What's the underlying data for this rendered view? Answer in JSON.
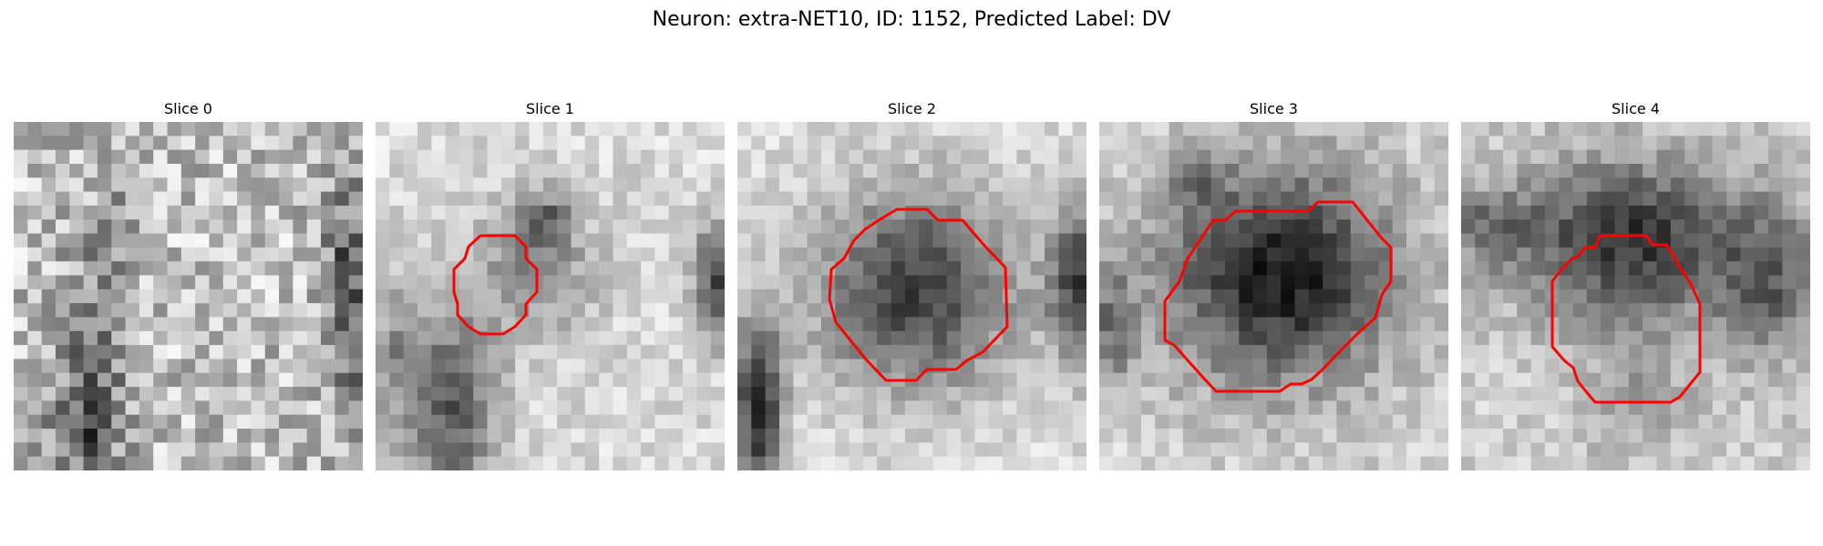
{
  "figure": {
    "title": "Neuron: extra-NET10, ID: 1152, Predicted Label: DV"
  },
  "colors": {
    "contour": "#ff0000",
    "background": "#ffffff",
    "colormap": "grayscale"
  },
  "slices": [
    {
      "title": "Slice 0",
      "has_contour": false
    },
    {
      "title": "Slice 1",
      "has_contour": true
    },
    {
      "title": "Slice 2",
      "has_contour": true
    },
    {
      "title": "Slice 3",
      "has_contour": true
    },
    {
      "title": "Slice 4",
      "has_contour": true
    }
  ]
}
